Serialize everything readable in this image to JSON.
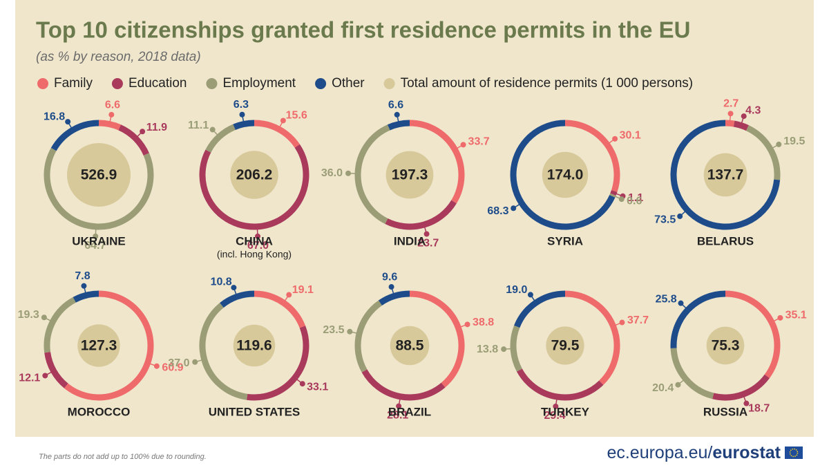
{
  "title": "Top 10 citizenships granted first residence permits in the EU",
  "subtitle": "(as % by reason, 2018 data)",
  "legend": {
    "categories": [
      "Family",
      "Education",
      "Employment",
      "Other"
    ],
    "colors": [
      "#ef6a6a",
      "#a93a5c",
      "#9b9d76",
      "#1e4c8a"
    ],
    "total_label": "Total amount of residence permits (1 000 persons)",
    "total_color": "#d8c99a"
  },
  "chart_data": [
    {
      "type": "donut",
      "title": "UKRAINE",
      "values": [
        6.6,
        11.9,
        64.7,
        16.8
      ],
      "total": 526.9
    },
    {
      "type": "donut",
      "title": "CHINA",
      "subtitle": "(incl. Hong Kong)",
      "values": [
        15.6,
        67,
        11.1,
        6.3
      ],
      "value_labels": [
        "15.6",
        "67.0",
        "11.1",
        "6.3"
      ],
      "total": 206.2
    },
    {
      "type": "donut",
      "title": "INDIA",
      "values": [
        33.7,
        23.7,
        36,
        6.6
      ],
      "value_labels": [
        "33.7",
        "23.7",
        "36.0",
        "6.6"
      ],
      "total": 197.3
    },
    {
      "type": "donut",
      "title": "SYRIA",
      "values": [
        30.1,
        1.1,
        0.6,
        68.3
      ],
      "total": {
        "value": 174,
        "label": "174.0"
      }
    },
    {
      "type": "donut",
      "title": "BELARUS",
      "values": [
        2.7,
        4.3,
        19.5,
        73.5
      ],
      "total": 137.7
    },
    {
      "type": "donut",
      "title": "MOROCCO",
      "values": [
        60.9,
        12.1,
        19.3,
        7.8
      ],
      "total": 127.3
    },
    {
      "type": "donut",
      "title": "UNITED STATES",
      "values": [
        19.1,
        33.1,
        37,
        10.8
      ],
      "value_labels": [
        "19.1",
        "33.1",
        "37.0",
        "10.8"
      ],
      "total": 119.6
    },
    {
      "type": "donut",
      "title": "BRAZIL",
      "values": [
        38.8,
        28.1,
        23.5,
        9.6
      ],
      "total": 88.5
    },
    {
      "type": "donut",
      "title": "TURKEY",
      "values": [
        37.7,
        29.4,
        13.8,
        19
      ],
      "value_labels": [
        "37.7",
        "29.4",
        "13.8",
        "19.0"
      ],
      "total": 79.5
    },
    {
      "type": "donut",
      "title": "RUSSIA",
      "values": [
        35.1,
        18.7,
        20.4,
        25.8
      ],
      "total": 75.3
    }
  ],
  "footnote": "The parts do not add up to 100% due to rounding.",
  "source": {
    "site": "ec.europa.eu/",
    "brand": "eurostat"
  }
}
